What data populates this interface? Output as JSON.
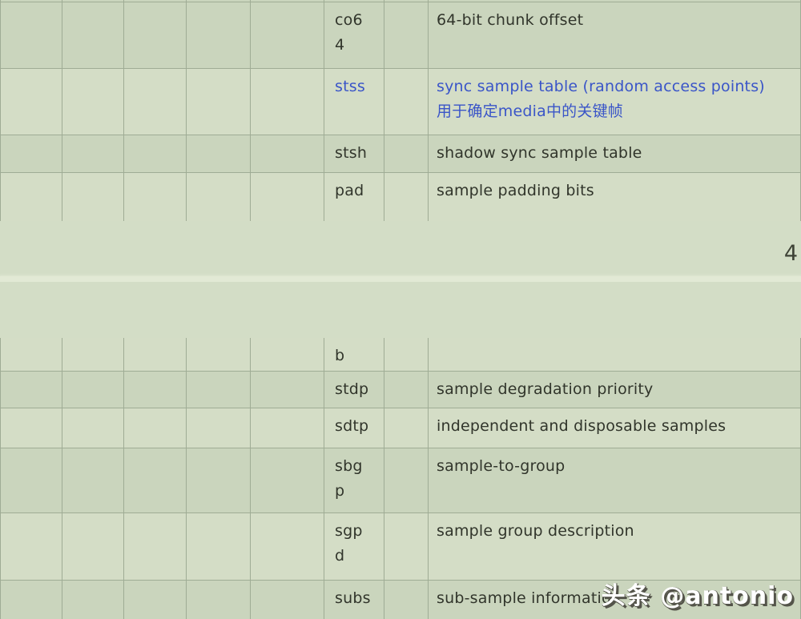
{
  "colors": {
    "page_bg": "#d3ddc6",
    "row_dark": "#cad5bd",
    "row_light": "#d4ddc6",
    "grid_line": "#9fac95",
    "text_dark": "#31352b",
    "text_link": "#3a55c8",
    "gap_strip": "#e2e9d5",
    "page_number_color": "#3e4236",
    "watermark_shadow": "#54544a"
  },
  "page_top": {
    "page_number": "4",
    "rows": [
      {
        "name": "co6\n4",
        "description": "64-bit chunk offset"
      },
      {
        "name": "stss",
        "description": "sync sample table (random access points)\n用于确定media中的关键帧"
      },
      {
        "name": "stsh",
        "description": "shadow sync sample table"
      },
      {
        "name": "pad",
        "description": "sample padding bits"
      }
    ]
  },
  "page_bottom": {
    "rows": [
      {
        "name": "b",
        "description": ""
      },
      {
        "name": "stdp",
        "description": "sample degradation priority"
      },
      {
        "name": "sdtp",
        "description": "independent and disposable samples"
      },
      {
        "name": "sbg\np",
        "description": "sample-to-group"
      },
      {
        "name": "sgp\nd",
        "description": "sample group description"
      },
      {
        "name": "subs",
        "description": "sub-sample information"
      }
    ]
  },
  "watermark": "头条 @antonio"
}
